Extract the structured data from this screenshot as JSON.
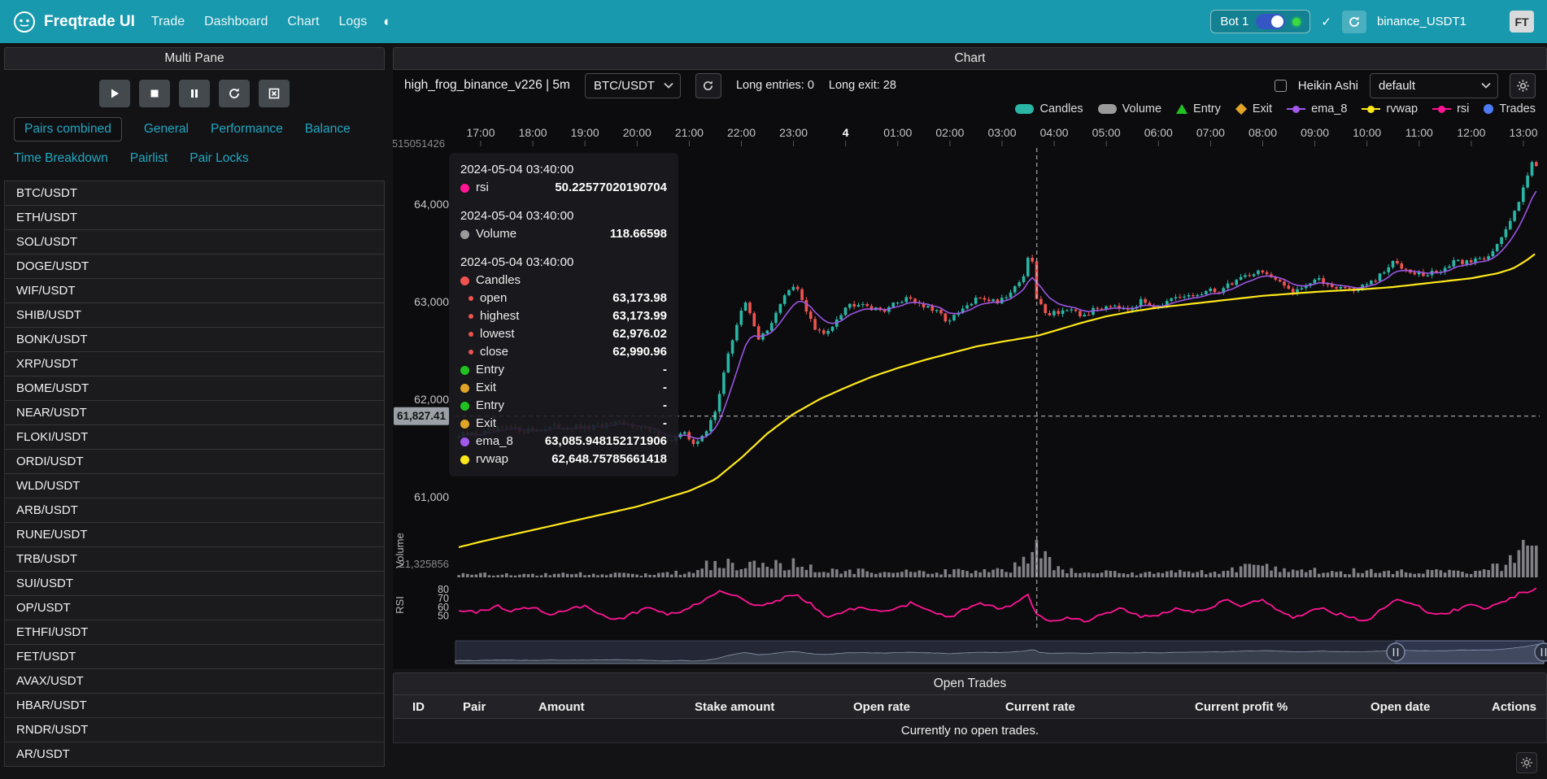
{
  "navbar": {
    "brand": "Freqtrade UI",
    "items": [
      "Trade",
      "Dashboard",
      "Chart",
      "Logs"
    ],
    "bot": {
      "label": "Bot 1",
      "check": "✓",
      "exchange_account": "binance_USDT1",
      "avatar": "FT"
    }
  },
  "sidebar": {
    "title": "Multi Pane",
    "controls": [
      "play",
      "stop",
      "pause",
      "reload",
      "force-exit"
    ],
    "tabs": [
      "Pairs combined",
      "General",
      "Performance",
      "Balance",
      "Time Breakdown",
      "Pairlist",
      "Pair Locks"
    ],
    "active_tab": "Pairs combined",
    "pairs": [
      "BTC/USDT",
      "ETH/USDT",
      "SOL/USDT",
      "DOGE/USDT",
      "WIF/USDT",
      "SHIB/USDT",
      "BONK/USDT",
      "XRP/USDT",
      "BOME/USDT",
      "NEAR/USDT",
      "FLOKI/USDT",
      "ORDI/USDT",
      "WLD/USDT",
      "ARB/USDT",
      "RUNE/USDT",
      "TRB/USDT",
      "SUI/USDT",
      "OP/USDT",
      "ETHFI/USDT",
      "FET/USDT",
      "AVAX/USDT",
      "HBAR/USDT",
      "RNDR/USDT",
      "AR/USDT"
    ]
  },
  "chart_panel": {
    "title": "Chart",
    "strategy_label": "high_frog_binance_v226 | 5m",
    "pair_select": "BTC/USDT",
    "entries_label": "Long entries: 0",
    "exits_label": "Long exit: 28",
    "heikin_ashi_label": "Heikin Ashi",
    "plot_config_select": "default",
    "crosshair_price_label": "61,827.41",
    "legend": [
      {
        "label": "Candles",
        "color": "#2ab6a5",
        "marker": "pill"
      },
      {
        "label": "Volume",
        "color": "#9a9a9a",
        "marker": "pill"
      },
      {
        "label": "Entry",
        "color": "#21c121",
        "marker": "triangle"
      },
      {
        "label": "Exit",
        "color": "#e0a526",
        "marker": "diamond"
      },
      {
        "label": "ema_8",
        "color": "#a259ec",
        "marker": "line-dot"
      },
      {
        "label": "rvwap",
        "color": "#ffe81a",
        "marker": "line-dot"
      },
      {
        "label": "rsi",
        "color": "#ff1493",
        "marker": "line-dot"
      },
      {
        "label": "Trades",
        "color": "#4d7bf3",
        "marker": "circle"
      }
    ],
    "tooltip": {
      "sections": [
        {
          "date": "2024-05-04 03:40:00",
          "rows": [
            {
              "label": "rsi",
              "color": "#ff1493",
              "value": "50.22577020190704",
              "sub": false
            }
          ]
        },
        {
          "date": "2024-05-04 03:40:00",
          "rows": [
            {
              "label": "Volume",
              "color": "#9a9a9a",
              "value": "118.66598",
              "sub": false
            }
          ]
        },
        {
          "date": "2024-05-04 03:40:00",
          "rows": [
            {
              "label": "Candles",
              "color": "#ef5350",
              "value": "",
              "sub": false
            },
            {
              "label": "open",
              "color": "#ef5350",
              "value": "63,173.98",
              "sub": true
            },
            {
              "label": "highest",
              "color": "#ef5350",
              "value": "63,173.99",
              "sub": true
            },
            {
              "label": "lowest",
              "color": "#ef5350",
              "value": "62,976.02",
              "sub": true
            },
            {
              "label": "close",
              "color": "#ef5350",
              "value": "62,990.96",
              "sub": true
            },
            {
              "label": "Entry",
              "color": "#21c121",
              "value": "-",
              "sub": false
            },
            {
              "label": "Exit",
              "color": "#e0a526",
              "value": "-",
              "sub": false
            },
            {
              "label": "Entry",
              "color": "#21c121",
              "value": "-",
              "sub": false
            },
            {
              "label": "Exit",
              "color": "#e0a526",
              "value": "-",
              "sub": false
            },
            {
              "label": "ema_8",
              "color": "#a259ec",
              "value": "63,085.948152171906",
              "sub": false
            },
            {
              "label": "rvwap",
              "color": "#ffe81a",
              "value": "62,648.75785661418",
              "sub": false
            }
          ]
        }
      ]
    },
    "axis": {
      "x_ticks": [
        "17:00",
        "18:00",
        "19:00",
        "20:00",
        "21:00",
        "22:00",
        "23:00",
        "4",
        "01:00",
        "02:00",
        "03:00",
        "04:00",
        "05:00",
        "06:00",
        "07:00",
        "08:00",
        "09:00",
        "10:00",
        "11:00",
        "12:00",
        "13:00"
      ],
      "day_tick": "4",
      "price_ticks": [
        "64,000",
        "63,000",
        "62,000",
        "61,000"
      ],
      "price_tick_values": [
        64000,
        63000,
        62000,
        61000
      ],
      "top_axis_label": "515051426",
      "volume_axis_label": "21,325856",
      "rsi_ticks": [
        "80",
        "70",
        "60",
        "50"
      ],
      "volume_title": "Volume",
      "rsi_title": "RSI"
    }
  },
  "open_trades": {
    "title": "Open Trades",
    "columns": [
      "ID",
      "Pair",
      "Amount",
      "Stake amount",
      "Open rate",
      "Current rate",
      "Current profit %",
      "Open date",
      "Actions"
    ],
    "empty_text": "Currently no open trades."
  },
  "chart_data": {
    "type": "candlestick+line",
    "pair": "BTC/USDT",
    "timeframe": "5m",
    "x_range_hours": [
      -0.42,
      20.25
    ],
    "hour_zero_label": "17:00",
    "candle_colors": {
      "up": "#2ab6a5",
      "down": "#ef5350"
    },
    "crosshair": {
      "t": 10.667,
      "price": 61827.41,
      "time": "2024-05-04 03:40:00"
    },
    "price_anchors": [
      [
        -0.45,
        61620
      ],
      [
        0,
        61650
      ],
      [
        0.5,
        61700
      ],
      [
        1,
        61680
      ],
      [
        1.5,
        61720
      ],
      [
        2,
        61700
      ],
      [
        2.5,
        61740
      ],
      [
        3,
        61730
      ],
      [
        3.3,
        61650
      ],
      [
        3.6,
        61570
      ],
      [
        3.9,
        61640
      ],
      [
        4.1,
        61560
      ],
      [
        4.3,
        61620
      ],
      [
        4.5,
        61900
      ],
      [
        4.7,
        62350
      ],
      [
        4.9,
        62750
      ],
      [
        5.05,
        63000
      ],
      [
        5.2,
        62850
      ],
      [
        5.35,
        62600
      ],
      [
        5.5,
        62700
      ],
      [
        5.7,
        62950
      ],
      [
        5.9,
        63100
      ],
      [
        6.05,
        63150
      ],
      [
        6.2,
        62980
      ],
      [
        6.4,
        62720
      ],
      [
        6.6,
        62650
      ],
      [
        6.8,
        62820
      ],
      [
        7,
        62950
      ],
      [
        7.3,
        63010
      ],
      [
        7.6,
        62900
      ],
      [
        7.9,
        62960
      ],
      [
        8.2,
        63060
      ],
      [
        8.5,
        62950
      ],
      [
        8.8,
        62870
      ],
      [
        9,
        62800
      ],
      [
        9.3,
        62940
      ],
      [
        9.6,
        63050
      ],
      [
        9.9,
        63000
      ],
      [
        10.2,
        63120
      ],
      [
        10.45,
        63300
      ],
      [
        10.55,
        63560
      ],
      [
        10.67,
        62990
      ],
      [
        10.9,
        62880
      ],
      [
        11.2,
        62920
      ],
      [
        11.5,
        62850
      ],
      [
        11.8,
        62920
      ],
      [
        12.1,
        62980
      ],
      [
        12.4,
        62940
      ],
      [
        12.7,
        63000
      ],
      [
        13,
        62960
      ],
      [
        13.4,
        63030
      ],
      [
        13.8,
        63080
      ],
      [
        14.2,
        63120
      ],
      [
        14.6,
        63260
      ],
      [
        15,
        63320
      ],
      [
        15.3,
        63180
      ],
      [
        15.6,
        63120
      ],
      [
        16,
        63220
      ],
      [
        16.4,
        63160
      ],
      [
        16.8,
        63120
      ],
      [
        17.2,
        63230
      ],
      [
        17.5,
        63400
      ],
      [
        17.8,
        63340
      ],
      [
        18.1,
        63260
      ],
      [
        18.4,
        63320
      ],
      [
        18.7,
        63400
      ],
      [
        19,
        63420
      ],
      [
        19.3,
        63470
      ],
      [
        19.6,
        63650
      ],
      [
        19.85,
        63950
      ],
      [
        20,
        64200
      ],
      [
        20.15,
        64420
      ],
      [
        20.25,
        64380
      ]
    ],
    "rvwap_anchors": [
      [
        -0.45,
        60480
      ],
      [
        0,
        60540
      ],
      [
        1,
        60660
      ],
      [
        2,
        60780
      ],
      [
        3,
        60900
      ],
      [
        4,
        61060
      ],
      [
        4.5,
        61180
      ],
      [
        5,
        61400
      ],
      [
        5.5,
        61650
      ],
      [
        6,
        61850
      ],
      [
        6.5,
        62000
      ],
      [
        7,
        62120
      ],
      [
        7.5,
        62230
      ],
      [
        8,
        62320
      ],
      [
        8.5,
        62400
      ],
      [
        9,
        62470
      ],
      [
        9.5,
        62540
      ],
      [
        10,
        62590
      ],
      [
        10.67,
        62649
      ],
      [
        11,
        62700
      ],
      [
        11.5,
        62780
      ],
      [
        12,
        62850
      ],
      [
        12.5,
        62900
      ],
      [
        13,
        62940
      ],
      [
        13.5,
        62970
      ],
      [
        14,
        63000
      ],
      [
        14.5,
        63030
      ],
      [
        15,
        63060
      ],
      [
        15.5,
        63080
      ],
      [
        16,
        63100
      ],
      [
        16.5,
        63115
      ],
      [
        17,
        63130
      ],
      [
        17.5,
        63150
      ],
      [
        18,
        63180
      ],
      [
        18.5,
        63210
      ],
      [
        19,
        63240
      ],
      [
        19.5,
        63290
      ],
      [
        19.8,
        63340
      ],
      [
        20.05,
        63420
      ],
      [
        20.25,
        63500
      ]
    ],
    "volume_anchors": [
      [
        -0.45,
        10
      ],
      [
        0,
        12
      ],
      [
        1,
        10
      ],
      [
        2,
        14
      ],
      [
        3,
        10
      ],
      [
        4,
        18
      ],
      [
        4.3,
        40
      ],
      [
        4.6,
        55
      ],
      [
        5,
        30
      ],
      [
        5.3,
        60
      ],
      [
        5.6,
        45
      ],
      [
        6,
        50
      ],
      [
        6.3,
        35
      ],
      [
        6.6,
        20
      ],
      [
        7,
        25
      ],
      [
        7.5,
        18
      ],
      [
        8,
        22
      ],
      [
        8.5,
        15
      ],
      [
        9,
        20
      ],
      [
        9.5,
        25
      ],
      [
        10,
        22
      ],
      [
        10.3,
        40
      ],
      [
        10.5,
        90
      ],
      [
        10.67,
        118
      ],
      [
        11,
        35
      ],
      [
        11.5,
        15
      ],
      [
        12,
        18
      ],
      [
        12.5,
        12
      ],
      [
        13,
        15
      ],
      [
        13.5,
        18
      ],
      [
        14,
        20
      ],
      [
        14.5,
        30
      ],
      [
        15,
        35
      ],
      [
        15.5,
        20
      ],
      [
        16,
        25
      ],
      [
        16.5,
        15
      ],
      [
        17,
        30
      ],
      [
        17.5,
        20
      ],
      [
        18,
        25
      ],
      [
        18.5,
        18
      ],
      [
        19,
        20
      ],
      [
        19.3,
        25
      ],
      [
        19.6,
        45
      ],
      [
        19.9,
        110
      ],
      [
        20.1,
        130
      ],
      [
        20.25,
        90
      ]
    ],
    "rsi_anchors": [
      [
        -0.4,
        55
      ],
      [
        0,
        55
      ],
      [
        0.3,
        62
      ],
      [
        0.6,
        55
      ],
      [
        1,
        60
      ],
      [
        1.3,
        50
      ],
      [
        1.6,
        57
      ],
      [
        2,
        62
      ],
      [
        2.3,
        52
      ],
      [
        2.6,
        45
      ],
      [
        3,
        55
      ],
      [
        3.3,
        60
      ],
      [
        3.6,
        52
      ],
      [
        4,
        58
      ],
      [
        4.3,
        70
      ],
      [
        4.6,
        78
      ],
      [
        5,
        72
      ],
      [
        5.3,
        60
      ],
      [
        5.6,
        65
      ],
      [
        6,
        75
      ],
      [
        6.3,
        65
      ],
      [
        6.6,
        50
      ],
      [
        7,
        55
      ],
      [
        7.3,
        62
      ],
      [
        7.6,
        55
      ],
      [
        8,
        60
      ],
      [
        8.3,
        65
      ],
      [
        8.6,
        55
      ],
      [
        9,
        48
      ],
      [
        9.3,
        58
      ],
      [
        9.6,
        64
      ],
      [
        10,
        58
      ],
      [
        10.3,
        66
      ],
      [
        10.5,
        75
      ],
      [
        10.67,
        50
      ],
      [
        11,
        45
      ],
      [
        11.3,
        48
      ],
      [
        11.6,
        44
      ],
      [
        12,
        55
      ],
      [
        12.3,
        58
      ],
      [
        12.6,
        50
      ],
      [
        13,
        52
      ],
      [
        13.3,
        58
      ],
      [
        13.6,
        55
      ],
      [
        14,
        60
      ],
      [
        14.3,
        68
      ],
      [
        14.6,
        62
      ],
      [
        15,
        70
      ],
      [
        15.3,
        55
      ],
      [
        15.6,
        48
      ],
      [
        16,
        60
      ],
      [
        16.3,
        55
      ],
      [
        16.6,
        50
      ],
      [
        17,
        45
      ],
      [
        17.3,
        60
      ],
      [
        17.6,
        68
      ],
      [
        18,
        62
      ],
      [
        18.3,
        50
      ],
      [
        18.6,
        55
      ],
      [
        19,
        62
      ],
      [
        19.3,
        58
      ],
      [
        19.6,
        66
      ],
      [
        19.9,
        75
      ],
      [
        20.2,
        80
      ]
    ]
  }
}
